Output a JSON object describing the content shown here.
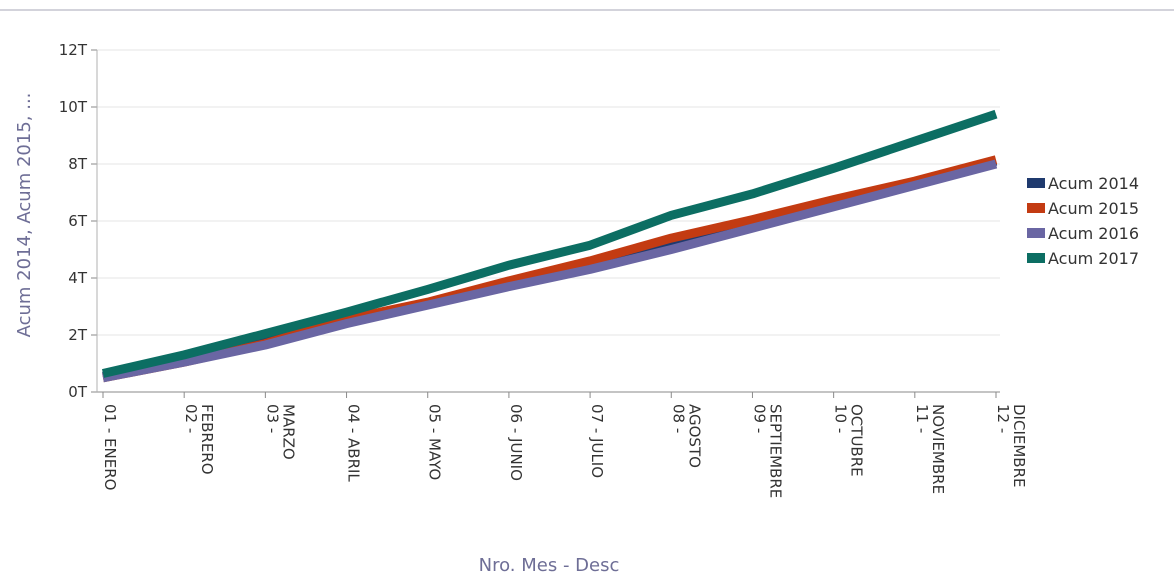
{
  "chart_data": {
    "type": "line",
    "title": "",
    "xlabel": "Nro. Mes - Desc",
    "ylabel": "Acum 2014, Acum 2015, ...",
    "ylim": [
      0,
      12
    ],
    "y_tick_values": [
      0,
      2,
      4,
      6,
      8,
      10,
      12
    ],
    "y_tick_labels": [
      "0T",
      "2T",
      "4T",
      "6T",
      "8T",
      "10T",
      "12T"
    ],
    "categories": [
      [
        "01 - ENERO"
      ],
      [
        "02 -",
        "FEBRERO"
      ],
      [
        "03 -",
        "MARZO"
      ],
      [
        "04 - ABRIL"
      ],
      [
        "05 - MAYO"
      ],
      [
        "06 - JUNIO"
      ],
      [
        "07 - JULIO"
      ],
      [
        "08 -",
        "AGOSTO"
      ],
      [
        "09 -",
        "SEPTIEMBRE"
      ],
      [
        "10 -",
        "OCTUBRE"
      ],
      [
        "11 -",
        "NOVIEMBRE"
      ],
      [
        "12 -",
        "DICIEMBRE"
      ]
    ],
    "legend_position": "right",
    "grid": true,
    "series": [
      {
        "name": "Acum 2014",
        "color": "#1f3a6e",
        "values": [
          0.55,
          1.1,
          1.75,
          2.45,
          3.1,
          3.75,
          4.4,
          5.1,
          5.85,
          6.6,
          7.35,
          8.1
        ]
      },
      {
        "name": "Acum 2015",
        "color": "#c33b12",
        "values": [
          0.5,
          1.05,
          1.7,
          2.55,
          3.15,
          3.9,
          4.6,
          5.4,
          6.05,
          6.75,
          7.4,
          8.15
        ]
      },
      {
        "name": "Acum 2016",
        "color": "#6a66a3",
        "values": [
          0.5,
          1.05,
          1.65,
          2.4,
          3.05,
          3.7,
          4.3,
          5.0,
          5.75,
          6.5,
          7.25,
          8.0
        ]
      },
      {
        "name": "Acum 2017",
        "color": "#0c6e63",
        "values": [
          0.65,
          1.3,
          2.05,
          2.8,
          3.6,
          4.45,
          5.15,
          6.2,
          6.95,
          7.85,
          8.8,
          9.75
        ]
      }
    ]
  }
}
